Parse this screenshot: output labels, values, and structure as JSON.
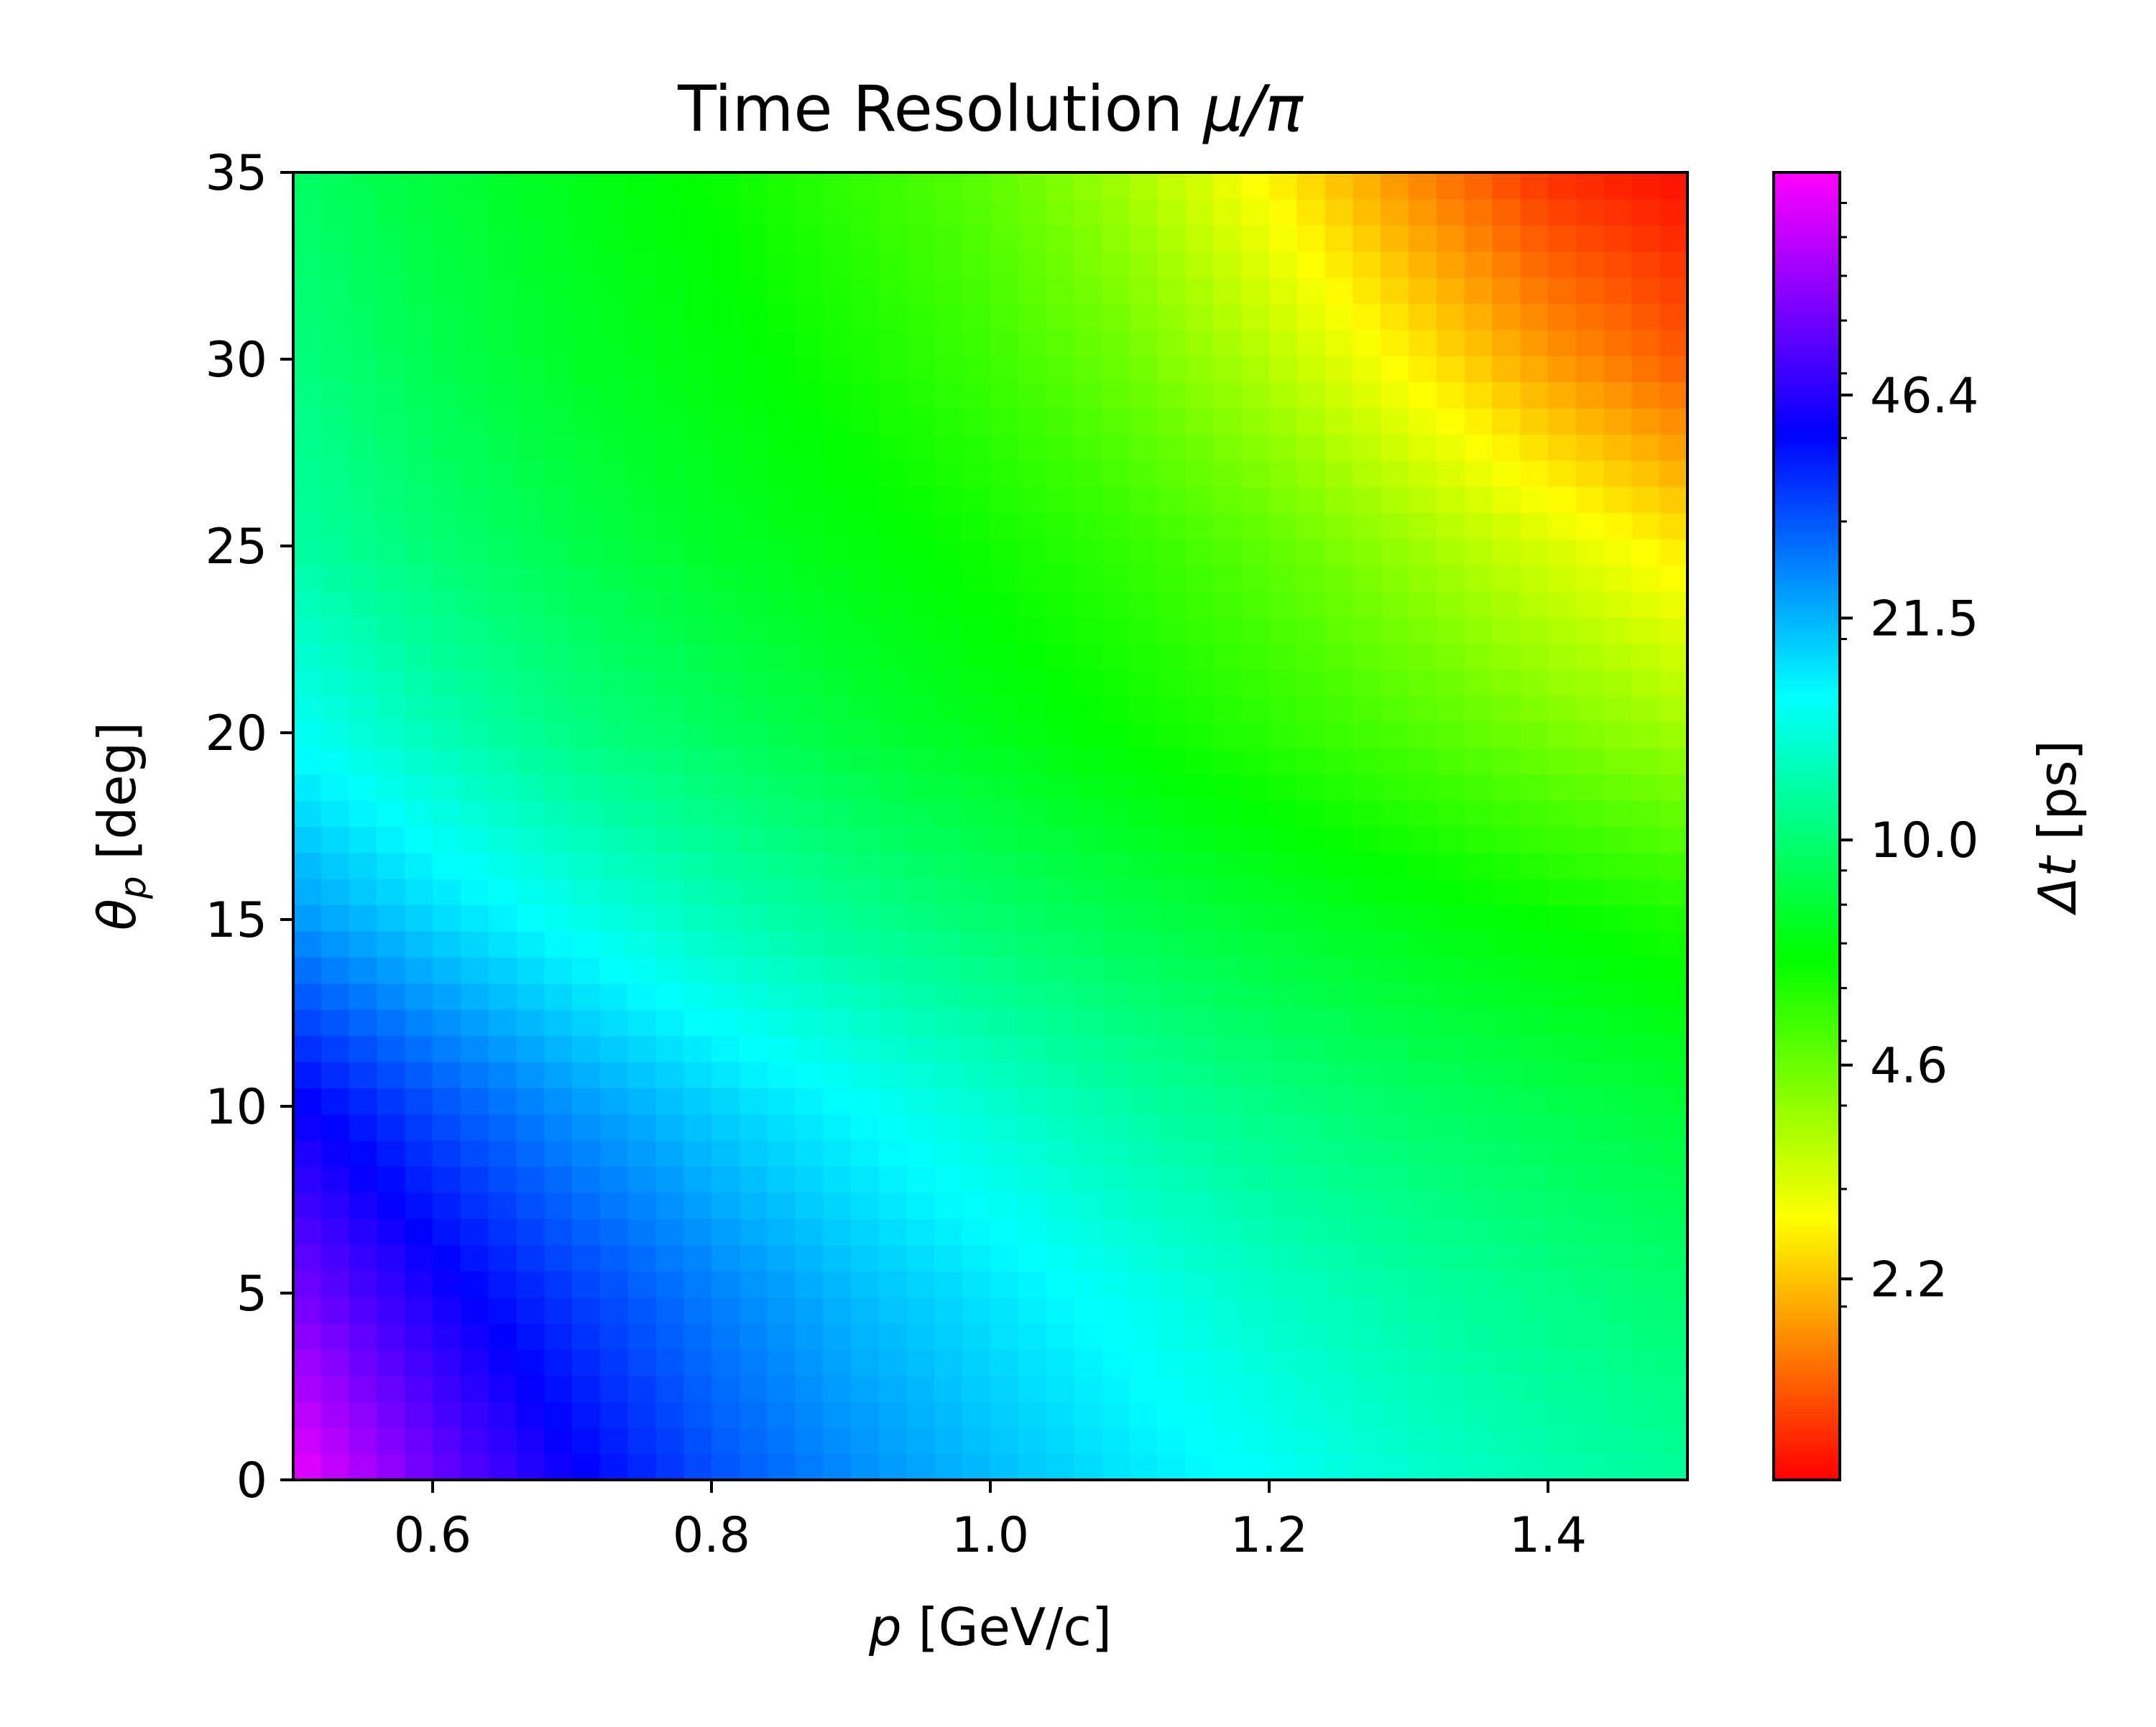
{
  "chart_data": {
    "type": "heatmap",
    "title": "Time Resolution",
    "title_math": "μ/π",
    "xlabel_sym": "p",
    "xlabel_unit": "[GeV/c]",
    "ylabel_sym": "θ",
    "ylabel_sub": "p",
    "ylabel_unit": "[deg]",
    "xlim": [
      0.5,
      1.5
    ],
    "ylim": [
      0,
      35
    ],
    "xticks": [
      0.6,
      0.8,
      1.0,
      1.2,
      1.4
    ],
    "xtick_labels": [
      "0.6",
      "0.8",
      "1.0",
      "1.2",
      "1.4"
    ],
    "yticks": [
      0,
      5,
      10,
      15,
      20,
      25,
      30,
      35
    ],
    "ytick_labels": [
      "0",
      "5",
      "10",
      "15",
      "20",
      "25",
      "30",
      "35"
    ],
    "colorbar": {
      "label_sym": "Δt",
      "label_unit": "[ps]",
      "scale": "log",
      "range": [
        1.1,
        100
      ],
      "ticks": [
        2.2,
        4.6,
        10.0,
        21.5,
        46.4
      ],
      "tick_labels": [
        "2.2",
        "4.6",
        "10.0",
        "21.5",
        "46.4"
      ],
      "colormap": [
        "#ff0000",
        "#ff8000",
        "#ffff00",
        "#80ff00",
        "#00ff00",
        "#00ff80",
        "#00ffff",
        "#0080ff",
        "#0000ff",
        "#8000ff",
        "#ff00ff"
      ]
    },
    "grid": false,
    "z_description": "time difference Δt in ps, decreasing with momentum p and with polar angle θ_p",
    "z_grid": {
      "p": [
        0.5,
        0.6,
        0.7,
        0.8,
        0.9,
        1.0,
        1.1,
        1.2,
        1.3,
        1.4,
        1.5
      ],
      "theta": [
        0,
        5,
        10,
        15,
        20,
        25,
        30,
        35
      ],
      "values": [
        [
          95,
          60,
          42,
          31,
          25,
          21,
          18,
          16,
          14,
          12.5,
          11.5
        ],
        [
          62,
          44,
          33,
          26,
          21,
          18,
          15.5,
          13.5,
          12,
          10.8,
          9.8
        ],
        [
          42,
          31,
          24,
          19.5,
          16.5,
          14,
          12,
          10.6,
          9.6,
          8.8,
          8.1
        ],
        [
          24,
          19,
          15.5,
          13,
          11.2,
          9.8,
          8.7,
          7.9,
          7.2,
          6.6,
          6.1
        ],
        [
          16,
          12.8,
          10.6,
          9.3,
          8.2,
          7.3,
          6.5,
          5.8,
          5.1,
          4.4,
          3.8
        ],
        [
          12,
          10,
          8.7,
          7.7,
          7.0,
          6.3,
          5.6,
          4.8,
          3.9,
          3.1,
          2.5
        ],
        [
          10.5,
          8.8,
          7.7,
          7.0,
          6.2,
          5.4,
          4.5,
          3.5,
          2.6,
          1.9,
          1.5
        ],
        [
          9.5,
          8.2,
          7.3,
          6.5,
          5.6,
          4.8,
          3.7,
          2.6,
          1.8,
          1.3,
          1.15
        ]
      ]
    }
  }
}
